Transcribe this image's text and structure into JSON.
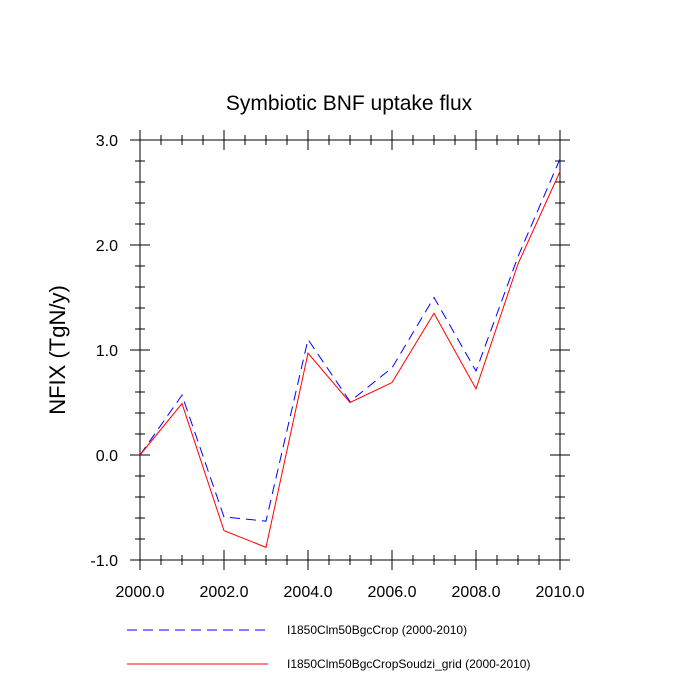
{
  "chart_data": {
    "type": "line",
    "title": "Symbiotic BNF uptake flux",
    "xlabel": "",
    "ylabel": "NFIX  (TgN/y)",
    "xlim": [
      2000,
      2010
    ],
    "ylim": [
      -1.0,
      3.0
    ],
    "x": [
      2000,
      2001,
      2002,
      2003,
      2004,
      2005,
      2006,
      2007,
      2008,
      2009,
      2010
    ],
    "x_ticks": [
      "2000.0",
      "2002.0",
      "2004.0",
      "2006.0",
      "2008.0",
      "2010.0"
    ],
    "y_ticks": [
      "3.0",
      "2.0",
      "1.0",
      "0.0",
      "-1.0"
    ],
    "grid": false,
    "legend_position": "bottom",
    "series": [
      {
        "name": "I1850Clm50BgcCrop (2000-2010)",
        "color": "#0000ff",
        "dash": "dashed",
        "values": [
          0.0,
          0.57,
          -0.59,
          -0.63,
          1.1,
          0.51,
          0.83,
          1.5,
          0.8,
          1.89,
          2.82
        ]
      },
      {
        "name": "I1850Clm50BgcCropSoudzi_grid (2000-2010)",
        "color": "#ff0000",
        "dash": "solid",
        "values": [
          0.0,
          0.49,
          -0.72,
          -0.88,
          0.97,
          0.5,
          0.69,
          1.35,
          0.63,
          1.82,
          2.7
        ]
      }
    ]
  }
}
